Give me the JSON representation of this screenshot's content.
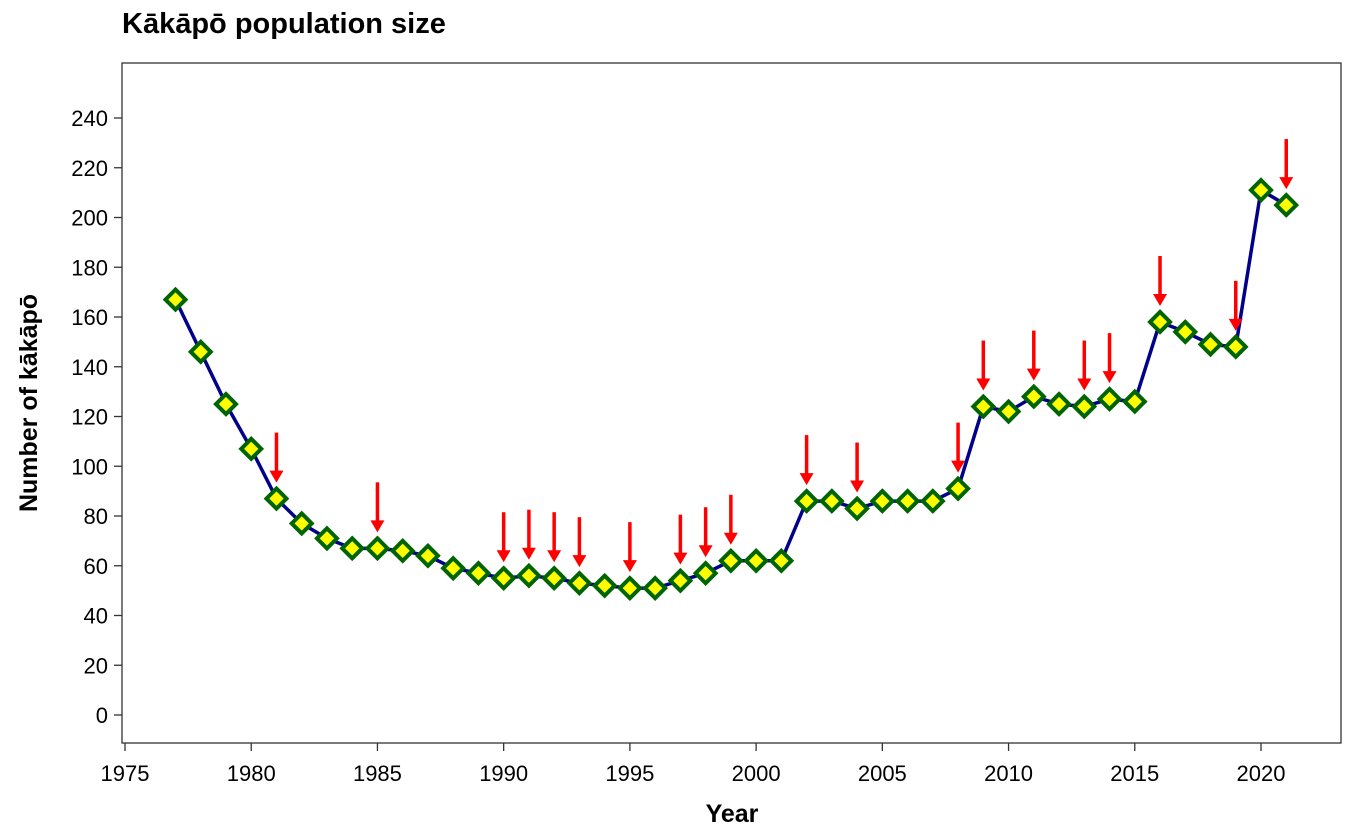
{
  "chart_data": {
    "type": "line",
    "title": "Kākāpō population size",
    "xlabel": "Year",
    "ylabel": "Number of kākāpō",
    "xlim": [
      1974,
      2023
    ],
    "ylim": [
      -12,
      262
    ],
    "xticks": [
      1975,
      1980,
      1985,
      1990,
      1995,
      2000,
      2005,
      2010,
      2015,
      2020
    ],
    "yticks": [
      0,
      20,
      40,
      60,
      80,
      100,
      120,
      140,
      160,
      180,
      200,
      220,
      240
    ],
    "grid": false,
    "x": [
      1977,
      1978,
      1979,
      1980,
      1981,
      1982,
      1983,
      1984,
      1985,
      1986,
      1987,
      1988,
      1989,
      1990,
      1991,
      1992,
      1993,
      1994,
      1995,
      1996,
      1997,
      1998,
      1999,
      2000,
      2001,
      2002,
      2003,
      2004,
      2005,
      2006,
      2007,
      2008,
      2009,
      2010,
      2011,
      2012,
      2013,
      2014,
      2015,
      2016,
      2017,
      2018,
      2019,
      2020,
      2021
    ],
    "series": [
      {
        "name": "Number of kākāpō",
        "values": [
          167,
          146,
          125,
          107,
          87,
          77,
          71,
          67,
          67,
          66,
          64,
          59,
          57,
          55,
          56,
          55,
          53,
          52,
          51,
          51,
          54,
          57,
          62,
          62,
          62,
          86,
          86,
          83,
          86,
          86,
          86,
          91,
          124,
          122,
          128,
          125,
          124,
          127,
          126,
          158,
          154,
          149,
          148,
          211,
          205
        ]
      }
    ],
    "annotations": {
      "type": "red-down-arrows",
      "years": [
        1981,
        1985,
        1990,
        1991,
        1992,
        1993,
        1995,
        1997,
        1998,
        1999,
        2002,
        2004,
        2008,
        2009,
        2011,
        2013,
        2014,
        2016,
        2019,
        2021
      ]
    },
    "colors": {
      "line": "#00008b",
      "marker_fill": "#ffff00",
      "marker_edge": "#006400",
      "arrow": "#ff0000"
    }
  }
}
